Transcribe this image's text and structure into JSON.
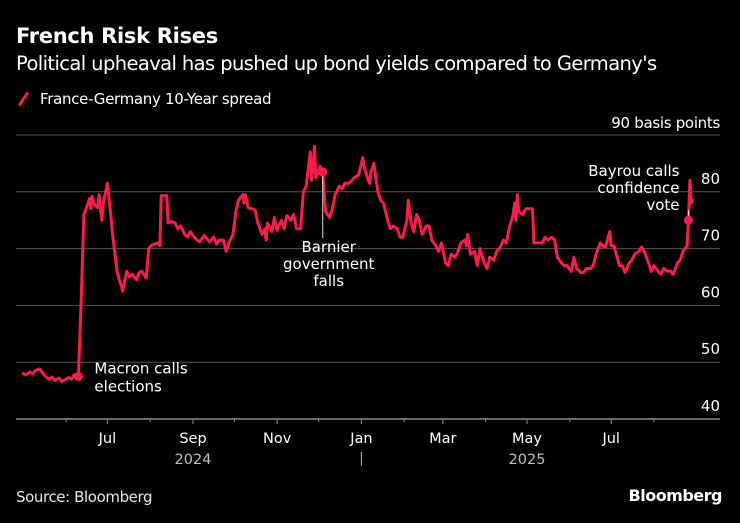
{
  "header": {
    "title": "French Risk Rises",
    "subtitle": "Political upheaval has pushed up bond yields compared to Germany's"
  },
  "legend": {
    "items": [
      {
        "label": "France-Germany 10-Year spread",
        "color": "#ff1a4b"
      }
    ]
  },
  "footer": {
    "source": "Source: Bloomberg",
    "brand": "Bloomberg"
  },
  "chart_data": {
    "type": "line",
    "title": "French Risk Rises",
    "subtitle": "Political upheaval has pushed up bond yields compared to Germany's",
    "xlabel": "",
    "ylabel": "basis points",
    "unit_label": "90 basis points",
    "ylim": [
      40,
      90
    ],
    "yticks": [
      40,
      50,
      60,
      70,
      80,
      90
    ],
    "ytick_labels": [
      "40",
      "50",
      "60",
      "70",
      "80",
      "90 basis points"
    ],
    "grid": true,
    "legend_position": "top-left",
    "xlim": [
      "2024-04-30",
      "2025-09-15"
    ],
    "xticks": [
      {
        "date": "2024-06-01",
        "label": ""
      },
      {
        "date": "2024-07-01",
        "label": "Jul"
      },
      {
        "date": "2024-08-01",
        "label": ""
      },
      {
        "date": "2024-09-01",
        "label": "Sep"
      },
      {
        "date": "2024-10-01",
        "label": ""
      },
      {
        "date": "2024-11-01",
        "label": "Nov"
      },
      {
        "date": "2024-12-01",
        "label": ""
      },
      {
        "date": "2025-01-01",
        "label": "Jan"
      },
      {
        "date": "2025-02-01",
        "label": ""
      },
      {
        "date": "2025-03-01",
        "label": "Mar"
      },
      {
        "date": "2025-04-01",
        "label": ""
      },
      {
        "date": "2025-05-01",
        "label": "May"
      },
      {
        "date": "2025-06-01",
        "label": ""
      },
      {
        "date": "2025-07-01",
        "label": "Jul"
      },
      {
        "date": "2025-08-01",
        "label": ""
      }
    ],
    "year_labels": [
      {
        "date": "2024-09-01",
        "label": "2024"
      },
      {
        "date": "2025-05-01",
        "label": "2025"
      }
    ],
    "year_divider": "2025-01-01",
    "series": [
      {
        "name": "France-Germany 10-Year spread",
        "color": "#ff1a4b",
        "points": [
          [
            "2024-05-01",
            48.0
          ],
          [
            "2024-05-03",
            47.8
          ],
          [
            "2024-05-06",
            48.3
          ],
          [
            "2024-05-08",
            48.0
          ],
          [
            "2024-05-10",
            48.6
          ],
          [
            "2024-05-13",
            48.8
          ],
          [
            "2024-05-15",
            48.2
          ],
          [
            "2024-05-17",
            47.5
          ],
          [
            "2024-05-20",
            47.0
          ],
          [
            "2024-05-22",
            47.4
          ],
          [
            "2024-05-24",
            46.8
          ],
          [
            "2024-05-27",
            47.2
          ],
          [
            "2024-05-29",
            46.6
          ],
          [
            "2024-06-03",
            47.3
          ],
          [
            "2024-06-05",
            47.0
          ],
          [
            "2024-06-07",
            47.8
          ],
          [
            "2024-06-10",
            47.5
          ],
          [
            "2024-06-12",
            61.0
          ],
          [
            "2024-06-14",
            76.0
          ],
          [
            "2024-06-17",
            78.0
          ],
          [
            "2024-06-18",
            78.8
          ],
          [
            "2024-06-19",
            77.0
          ],
          [
            "2024-06-20",
            79.2
          ],
          [
            "2024-06-21",
            78.0
          ],
          [
            "2024-06-24",
            77.2
          ],
          [
            "2024-06-25",
            79.5
          ],
          [
            "2024-06-26",
            77.0
          ],
          [
            "2024-06-27",
            75.0
          ],
          [
            "2024-06-28",
            78.0
          ],
          [
            "2024-07-01",
            81.5
          ],
          [
            "2024-07-03",
            77.0
          ],
          [
            "2024-07-05",
            72.0
          ],
          [
            "2024-07-08",
            66.0
          ],
          [
            "2024-07-09",
            65.0
          ],
          [
            "2024-07-11",
            63.5
          ],
          [
            "2024-07-12",
            62.5
          ],
          [
            "2024-07-15",
            66.0
          ],
          [
            "2024-07-17",
            65.0
          ],
          [
            "2024-07-19",
            65.5
          ],
          [
            "2024-07-22",
            64.5
          ],
          [
            "2024-07-24",
            65.8
          ],
          [
            "2024-07-26",
            66.0
          ],
          [
            "2024-07-29",
            64.8
          ],
          [
            "2024-07-31",
            70.0
          ],
          [
            "2024-08-02",
            70.6
          ],
          [
            "2024-08-05",
            70.9
          ],
          [
            "2024-08-07",
            71.0
          ],
          [
            "2024-08-08",
            70.5
          ],
          [
            "2024-08-09",
            79.3
          ],
          [
            "2024-08-13",
            79.3
          ],
          [
            "2024-08-14",
            74.5
          ],
          [
            "2024-08-16",
            74.8
          ],
          [
            "2024-08-19",
            74.5
          ],
          [
            "2024-08-21",
            73.5
          ],
          [
            "2024-08-23",
            74.0
          ],
          [
            "2024-08-26",
            72.5
          ],
          [
            "2024-08-28",
            72.0
          ],
          [
            "2024-08-30",
            73.0
          ],
          [
            "2024-09-02",
            72.0
          ],
          [
            "2024-09-04",
            71.5
          ],
          [
            "2024-09-06",
            71.2
          ],
          [
            "2024-09-09",
            72.3
          ],
          [
            "2024-09-11",
            71.8
          ],
          [
            "2024-09-13",
            71.2
          ],
          [
            "2024-09-16",
            72.0
          ],
          [
            "2024-09-18",
            70.8
          ],
          [
            "2024-09-20",
            71.5
          ],
          [
            "2024-09-23",
            71.5
          ],
          [
            "2024-09-25",
            69.5
          ],
          [
            "2024-09-27",
            71.0
          ],
          [
            "2024-09-30",
            72.5
          ],
          [
            "2024-10-02",
            76.5
          ],
          [
            "2024-10-04",
            78.5
          ],
          [
            "2024-10-07",
            79.5
          ],
          [
            "2024-10-08",
            78.0
          ],
          [
            "2024-10-09",
            79.5
          ],
          [
            "2024-10-11",
            77.2
          ],
          [
            "2024-10-14",
            77.0
          ],
          [
            "2024-10-16",
            76.8
          ],
          [
            "2024-10-18",
            74.5
          ],
          [
            "2024-10-21",
            72.5
          ],
          [
            "2024-10-23",
            73.5
          ],
          [
            "2024-10-24",
            71.5
          ],
          [
            "2024-10-25",
            74.5
          ],
          [
            "2024-10-28",
            73.0
          ],
          [
            "2024-10-30",
            75.5
          ],
          [
            "2024-11-01",
            73.2
          ],
          [
            "2024-11-04",
            75.0
          ],
          [
            "2024-11-06",
            73.5
          ],
          [
            "2024-11-08",
            75.8
          ],
          [
            "2024-11-11",
            75.0
          ],
          [
            "2024-11-13",
            76.0
          ],
          [
            "2024-11-15",
            73.5
          ],
          [
            "2024-11-18",
            73.5
          ],
          [
            "2024-11-20",
            80.0
          ],
          [
            "2024-11-22",
            81.0
          ],
          [
            "2024-11-25",
            87.0
          ],
          [
            "2024-11-26",
            82.0
          ],
          [
            "2024-11-27",
            84.5
          ],
          [
            "2024-11-28",
            88.0
          ],
          [
            "2024-11-29",
            82.5
          ],
          [
            "2024-12-02",
            84.5
          ],
          [
            "2024-12-04",
            83.5
          ],
          [
            "2024-12-06",
            76.5
          ],
          [
            "2024-12-09",
            75.5
          ],
          [
            "2024-12-11",
            77.0
          ],
          [
            "2024-12-13",
            79.5
          ],
          [
            "2024-12-16",
            81.0
          ],
          [
            "2024-12-18",
            80.5
          ],
          [
            "2024-12-20",
            81.5
          ],
          [
            "2024-12-23",
            81.5
          ],
          [
            "2024-12-27",
            82.5
          ],
          [
            "2024-12-30",
            83.0
          ],
          [
            "2025-01-02",
            86.0
          ],
          [
            "2025-01-03",
            84.5
          ],
          [
            "2025-01-06",
            82.0
          ],
          [
            "2025-01-07",
            81.5
          ],
          [
            "2025-01-08",
            83.5
          ],
          [
            "2025-01-10",
            85.0
          ],
          [
            "2025-01-13",
            80.0
          ],
          [
            "2025-01-15",
            78.5
          ],
          [
            "2025-01-17",
            78.0
          ],
          [
            "2025-01-20",
            75.0
          ],
          [
            "2025-01-22",
            73.5
          ],
          [
            "2025-01-24",
            74.0
          ],
          [
            "2025-01-27",
            73.5
          ],
          [
            "2025-01-29",
            72.0
          ],
          [
            "2025-01-31",
            72.0
          ],
          [
            "2025-02-03",
            75.0
          ],
          [
            "2025-02-04",
            78.5
          ],
          [
            "2025-02-06",
            74.5
          ],
          [
            "2025-02-08",
            73.0
          ],
          [
            "2025-02-10",
            76.0
          ],
          [
            "2025-02-12",
            75.0
          ],
          [
            "2025-02-14",
            72.5
          ],
          [
            "2025-02-17",
            74.0
          ],
          [
            "2025-02-19",
            74.0
          ],
          [
            "2025-02-21",
            71.5
          ],
          [
            "2025-02-24",
            70.5
          ],
          [
            "2025-02-26",
            69.5
          ],
          [
            "2025-02-28",
            71.0
          ],
          [
            "2025-03-03",
            67.5
          ],
          [
            "2025-03-05",
            67.0
          ],
          [
            "2025-03-07",
            69.0
          ],
          [
            "2025-03-10",
            68.5
          ],
          [
            "2025-03-12",
            69.5
          ],
          [
            "2025-03-14",
            71.0
          ],
          [
            "2025-03-17",
            71.5
          ],
          [
            "2025-03-18",
            70.5
          ],
          [
            "2025-03-19",
            72.5
          ],
          [
            "2025-03-21",
            69.0
          ],
          [
            "2025-03-24",
            69.5
          ],
          [
            "2025-03-26",
            67.0
          ],
          [
            "2025-03-28",
            70.0
          ],
          [
            "2025-03-31",
            67.5
          ],
          [
            "2025-04-02",
            66.5
          ],
          [
            "2025-04-04",
            68.5
          ],
          [
            "2025-04-07",
            68.0
          ],
          [
            "2025-04-09",
            69.5
          ],
          [
            "2025-04-11",
            70.0
          ],
          [
            "2025-04-14",
            71.5
          ],
          [
            "2025-04-16",
            71.0
          ],
          [
            "2025-04-18",
            73.5
          ],
          [
            "2025-04-21",
            76.0
          ],
          [
            "2025-04-22",
            78.0
          ],
          [
            "2025-04-23",
            75.0
          ],
          [
            "2025-04-24",
            79.5
          ],
          [
            "2025-04-25",
            76.5
          ],
          [
            "2025-04-28",
            76.0
          ],
          [
            "2025-04-30",
            77.0
          ],
          [
            "2025-05-02",
            77.0
          ],
          [
            "2025-05-05",
            77.0
          ],
          [
            "2025-05-06",
            71.0
          ],
          [
            "2025-05-08",
            71.0
          ],
          [
            "2025-05-12",
            71.0
          ],
          [
            "2025-05-14",
            72.0
          ],
          [
            "2025-05-16",
            71.5
          ],
          [
            "2025-05-19",
            72.0
          ],
          [
            "2025-05-21",
            71.5
          ],
          [
            "2025-05-23",
            68.5
          ],
          [
            "2025-05-26",
            67.5
          ],
          [
            "2025-05-28",
            67.0
          ],
          [
            "2025-05-30",
            67.0
          ],
          [
            "2025-06-02",
            66.0
          ],
          [
            "2025-06-04",
            68.5
          ],
          [
            "2025-06-06",
            66.5
          ],
          [
            "2025-06-09",
            65.8
          ],
          [
            "2025-06-11",
            65.8
          ],
          [
            "2025-06-13",
            66.5
          ],
          [
            "2025-06-16",
            66.5
          ],
          [
            "2025-06-18",
            67.0
          ],
          [
            "2025-06-20",
            69.0
          ],
          [
            "2025-06-23",
            71.0
          ],
          [
            "2025-06-25",
            70.5
          ],
          [
            "2025-06-27",
            70.3
          ],
          [
            "2025-06-30",
            73.0
          ],
          [
            "2025-07-01",
            70.5
          ],
          [
            "2025-07-03",
            70.5
          ],
          [
            "2025-07-07",
            67.0
          ],
          [
            "2025-07-09",
            67.0
          ],
          [
            "2025-07-11",
            65.8
          ],
          [
            "2025-07-14",
            67.5
          ],
          [
            "2025-07-16",
            68.0
          ],
          [
            "2025-07-18",
            69.0
          ],
          [
            "2025-07-21",
            69.5
          ],
          [
            "2025-07-23",
            70.3
          ],
          [
            "2025-07-25",
            69.5
          ],
          [
            "2025-07-28",
            67.5
          ],
          [
            "2025-07-30",
            66.0
          ],
          [
            "2025-08-01",
            67.0
          ],
          [
            "2025-08-04",
            66.0
          ],
          [
            "2025-08-06",
            65.5
          ],
          [
            "2025-08-08",
            66.5
          ],
          [
            "2025-08-11",
            66.0
          ],
          [
            "2025-08-13",
            66.0
          ],
          [
            "2025-08-15",
            65.5
          ],
          [
            "2025-08-18",
            67.5
          ],
          [
            "2025-08-20",
            68.0
          ],
          [
            "2025-08-22",
            69.5
          ],
          [
            "2025-08-25",
            70.5
          ],
          [
            "2025-08-26",
            75.0
          ],
          [
            "2025-08-27",
            82.0
          ],
          [
            "2025-08-28",
            78.0
          ],
          [
            "2025-08-29",
            78.5
          ]
        ]
      }
    ],
    "annotations": [
      {
        "date": "2024-06-10",
        "value": 47.5,
        "text": [
          "Macron calls",
          "elections"
        ],
        "placement": "right"
      },
      {
        "date": "2024-12-04",
        "value": 83.5,
        "text": [
          "Barnier",
          "government",
          "falls"
        ],
        "placement": "below"
      },
      {
        "date": "2025-08-26",
        "value": 75.0,
        "text": [
          "Bayrou calls",
          "confidence",
          "vote"
        ],
        "placement": "above-left"
      }
    ]
  }
}
